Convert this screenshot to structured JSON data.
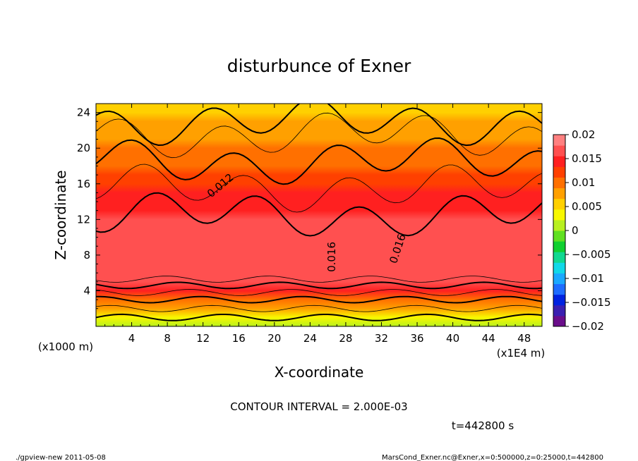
{
  "chart_data": {
    "type": "heatmap",
    "title": "disturbunce of Exner",
    "xlabel": "X-coordinate",
    "ylabel": "Z-coordinate",
    "x_unit_label": "(x1E4 m)",
    "y_unit_label": "(x1000 m)",
    "xlim": [
      0,
      50
    ],
    "ylim": [
      0,
      25
    ],
    "x_ticks": [
      4,
      8,
      12,
      16,
      20,
      24,
      28,
      32,
      36,
      40,
      44,
      48
    ],
    "y_ticks": [
      4,
      8,
      12,
      16,
      20,
      24
    ],
    "colorbar": {
      "min": -0.02,
      "max": 0.02,
      "tick_values": [
        0.02,
        0.015,
        0.01,
        0.005,
        0,
        -0.005,
        -0.01,
        -0.015,
        -0.02
      ],
      "tick_labels": [
        "0.02",
        "0.015",
        "0.01",
        "0.005",
        "0",
        "−0.005",
        "−0.01",
        "−0.015",
        "−0.02"
      ],
      "colors": [
        "#6a0d8a",
        "#3a1fb0",
        "#0022e0",
        "#1e6cff",
        "#1aa8ff",
        "#10d8e8",
        "#10d890",
        "#10d030",
        "#60e020",
        "#b8f020",
        "#f8f800",
        "#ffd000",
        "#ffa000",
        "#ff7000",
        "#ff4000",
        "#ff2020",
        "#ff5050",
        "#ff8080"
      ]
    },
    "contour_labels": [
      {
        "text": "0.012",
        "x": 14.2,
        "z": 15.5,
        "angle": -40
      },
      {
        "text": "0.016",
        "x": 26.8,
        "z": 7.8,
        "angle": -90
      },
      {
        "text": "0.016",
        "x": 34.2,
        "z": 8.6,
        "angle": -72
      }
    ],
    "contour_interval_text": "CONTOUR INTERVAL = 2.000E-03",
    "time_text": "t=442800 s",
    "approx_field": {
      "surface_value": 0.0,
      "interior_max_value": 0.017,
      "interior_max_z_range": [
        5,
        11
      ],
      "top_value": 0.005,
      "note": "field increases from ~0 near z=0 to ~0.017 around z=5-11, decreasing to ~0.005 near z=24"
    }
  },
  "footer": {
    "left": "./gpview-new   2011-05-08",
    "right": "MarsCond_Exner.nc@Exner,x=0:500000,z=0:25000,t=442800"
  }
}
